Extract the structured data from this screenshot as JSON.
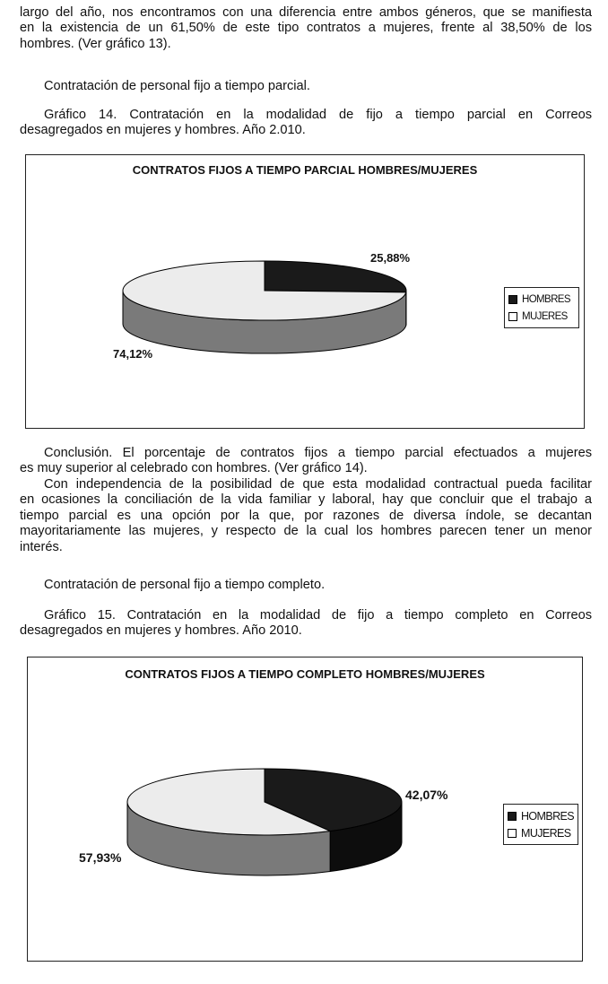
{
  "paragraphs": {
    "p1": [
      "largo del año, nos encontramos con una diferencia entre ambos géneros, que se manifiesta",
      "en la existencia de un 61,50% de este tipo contratos a mujeres, frente al 38,50% de los",
      "hombres. (Ver gráfico 13)."
    ],
    "p2": "Contratación de personal fijo a tiempo parcial.",
    "p3": [
      "Gráfico 14.  Contratación en la modalidad de fijo a tiempo parcial en Correos",
      "desagregados en mujeres y hombres. Año 2.010."
    ],
    "p4": [
      "Conclusión.  El porcentaje de contratos fijos a tiempo parcial efectuados a mujeres",
      "es muy superior al celebrado con hombres. (Ver gráfico 14)."
    ],
    "p5": [
      "Con independencia de la posibilidad de que esta modalidad contractual pueda facilitar",
      "en ocasiones la conciliación de la vida familiar y laboral, hay que concluir que el trabajo a",
      "tiempo parcial es una opción por la que, por razones de diversa índole, se decantan",
      "mayoritariamente las mujeres, y respecto de la cual los hombres parecen tener un menor",
      "interés."
    ],
    "p6": "Contratación de personal fijo a tiempo completo.",
    "p7": [
      "Gráfico 15.  Contratación en la modalidad de fijo a tiempo completo en Correos",
      "desagregados en mujeres y hombres. Año 2010."
    ]
  },
  "chart_data": [
    {
      "type": "pie",
      "style": "3d",
      "title": "CONTRATOS FIJOS A TIEMPO PARCIAL HOMBRES/MUJERES",
      "categories": [
        "HOMBRES",
        "MUJERES"
      ],
      "values": [
        25.88,
        74.12
      ],
      "data_labels": [
        "25,88%",
        "74,12%"
      ],
      "colors": [
        "#1a1a1a",
        "#ececec"
      ],
      "side_colors": [
        "#0d0d0d",
        "#7a7a7a"
      ],
      "legend": "right"
    },
    {
      "type": "pie",
      "style": "3d",
      "title": "CONTRATOS FIJOS A TIEMPO COMPLETO HOMBRES/MUJERES",
      "categories": [
        "HOMBRES",
        "MUJERES"
      ],
      "values": [
        42.07,
        57.93
      ],
      "data_labels": [
        "42,07%",
        "57,93%"
      ],
      "colors": [
        "#1a1a1a",
        "#ececec"
      ],
      "side_colors": [
        "#0d0d0d",
        "#7a7a7a"
      ],
      "legend": "right"
    }
  ]
}
